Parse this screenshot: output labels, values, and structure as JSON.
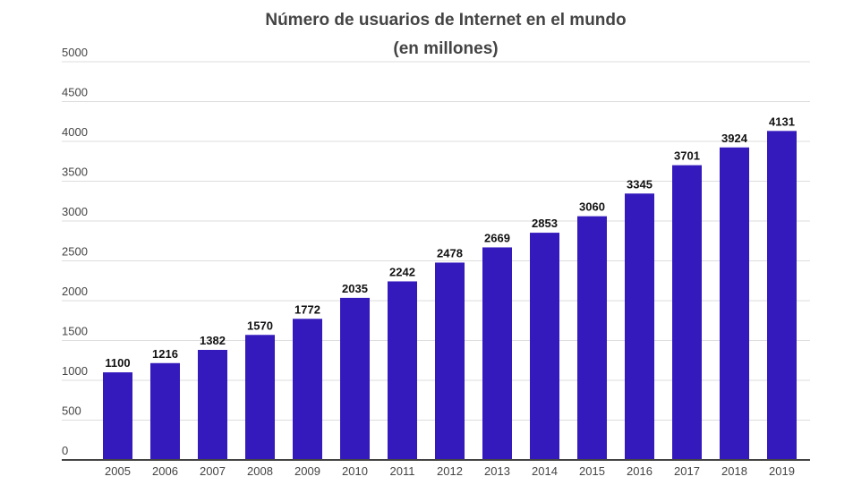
{
  "chart_data": {
    "type": "bar",
    "title": "Número de usuarios de Internet en el mundo",
    "subtitle": "(en millones)",
    "xlabel": "",
    "ylabel": "",
    "ylim": [
      0,
      5000
    ],
    "yticks": [
      0,
      500,
      1000,
      1500,
      2000,
      2500,
      3000,
      3500,
      4000,
      4500,
      5000
    ],
    "grid": true,
    "categories": [
      "2005",
      "2006",
      "2007",
      "2008",
      "2009",
      "2010",
      "2011",
      "2012",
      "2013",
      "2014",
      "2015",
      "2016",
      "2017",
      "2018",
      "2019"
    ],
    "values": [
      1100,
      1216,
      1382,
      1570,
      1772,
      2035,
      2242,
      2478,
      2669,
      2853,
      3060,
      3345,
      3701,
      3924,
      4131
    ],
    "bar_color": "#3419bd"
  }
}
